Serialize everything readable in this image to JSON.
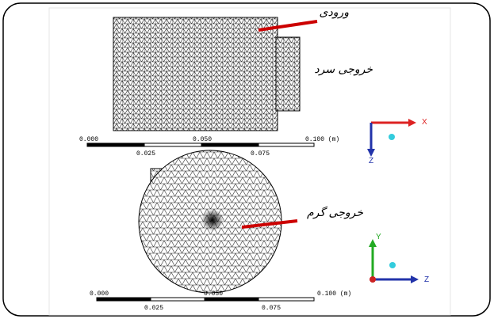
{
  "panels": [
    {
      "labels": [
        "ورودی",
        "خروجی سرد"
      ],
      "scale_labels": [
        "0.000",
        "0.025",
        "0.050",
        "0.075",
        "0.100 (m)"
      ],
      "axes": [
        "X",
        "Z"
      ]
    },
    {
      "labels": [
        "خروجی گرم"
      ],
      "scale_labels": [
        "0.000",
        "0.025",
        "0.050",
        "0.075",
        "0.100 (m)"
      ],
      "axes": [
        "Y",
        "Z"
      ]
    }
  ]
}
